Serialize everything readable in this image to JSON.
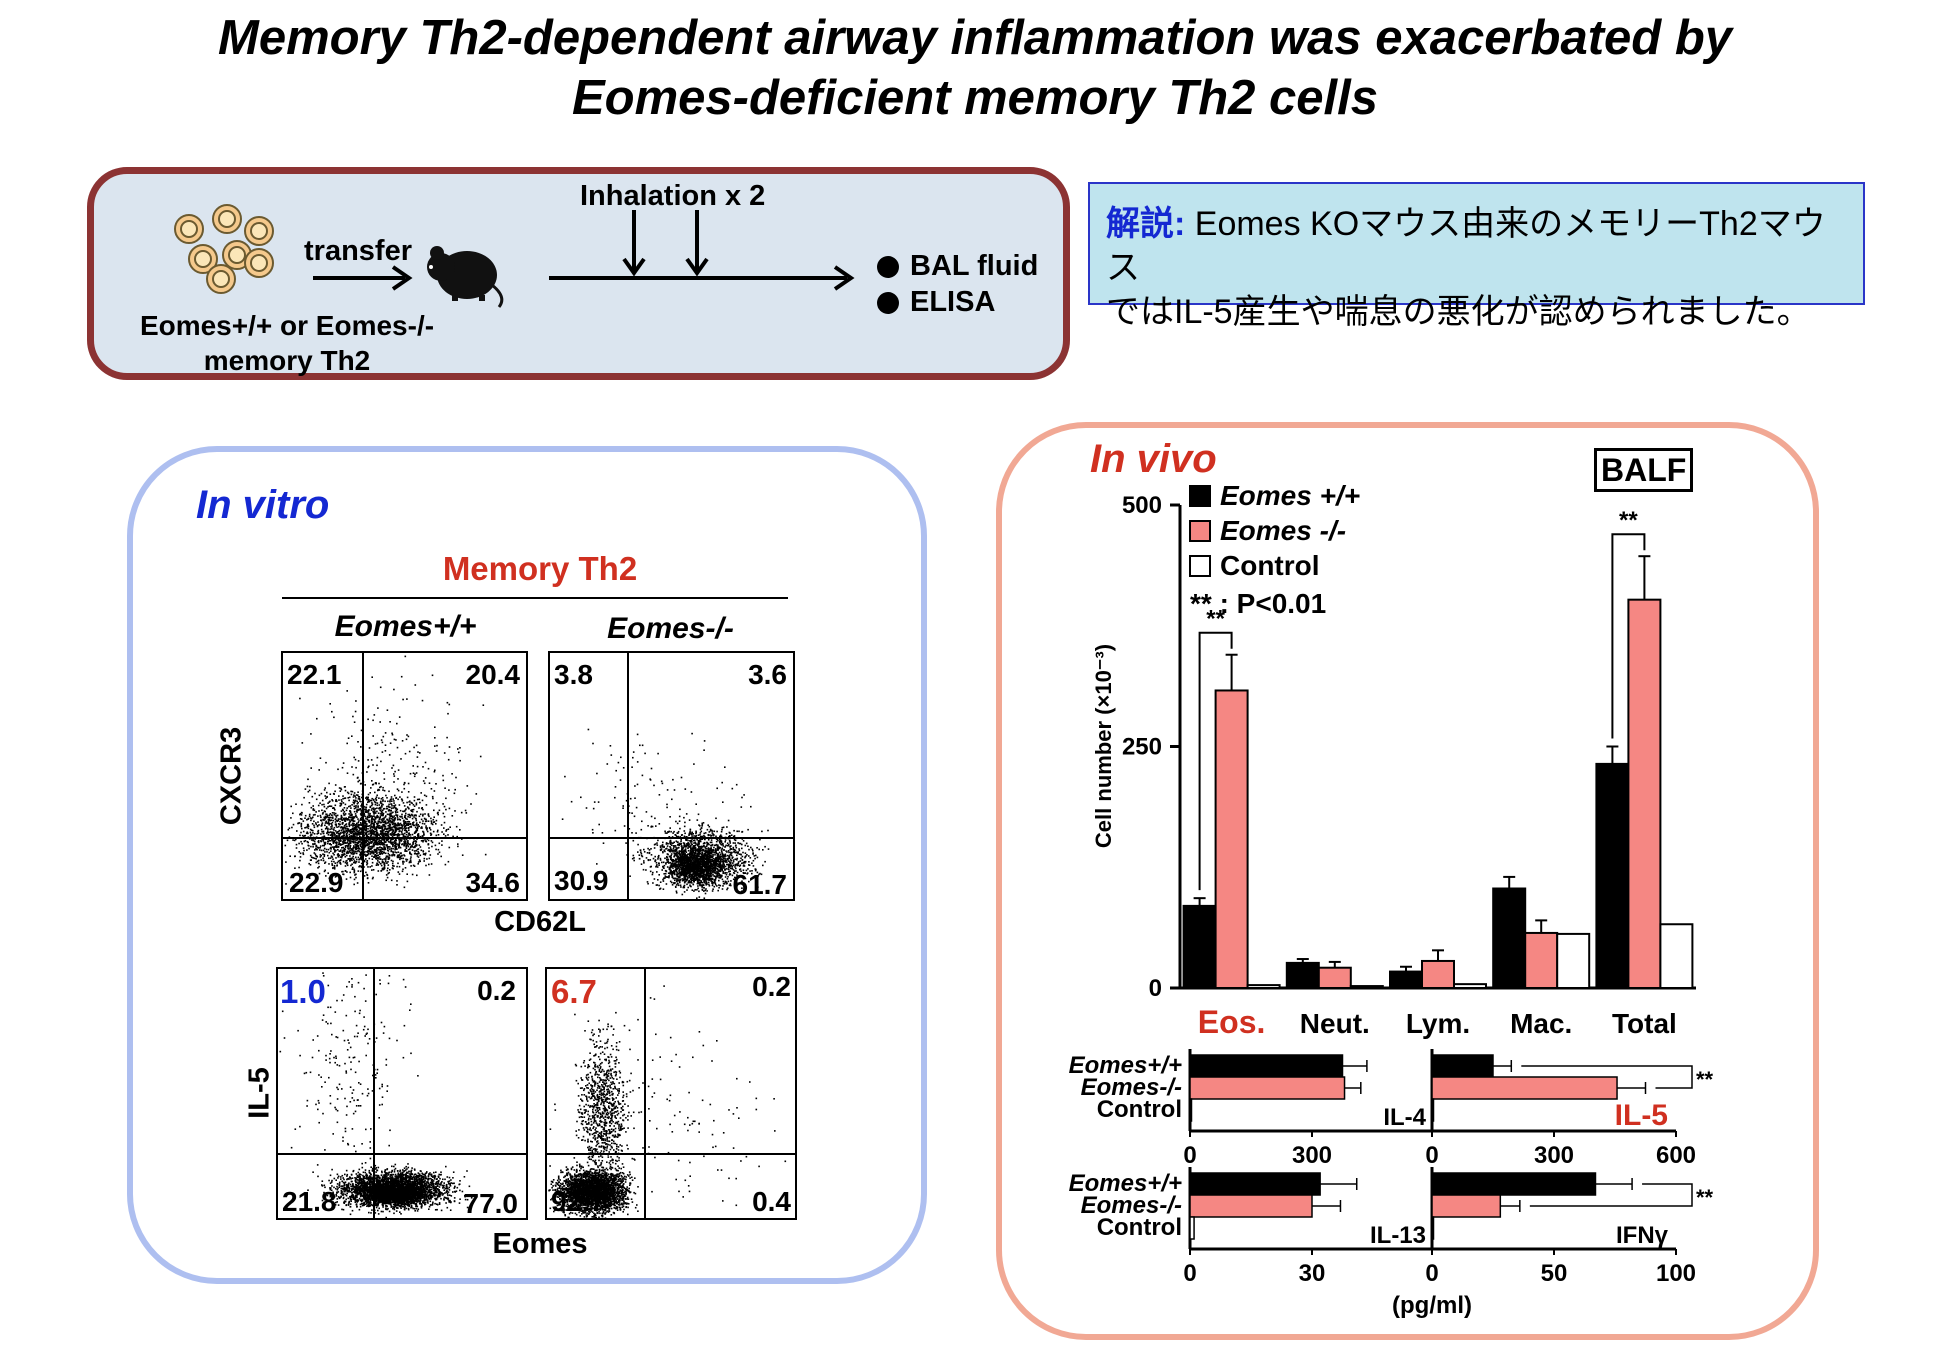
{
  "title": {
    "line1": "Memory Th2-dependent airway inflammation was exacerbated by",
    "line2": "Eomes-deficient memory Th2 cells"
  },
  "protocol": {
    "transfer": "transfer",
    "inhalation": "Inhalation x 2",
    "cells_line1": "Eomes+/+ or Eomes-/-",
    "cells_line2": "memory Th2",
    "readout1": "BAL fluid",
    "readout2": "ELISA"
  },
  "commentary": {
    "label": "解説:",
    "text1": " Eomes KOマウス由来のメモリーTh2マウス",
    "text2": "ではIL-5産生や喘息の悪化が認められました。"
  },
  "in_vitro": {
    "heading": "In vitro",
    "group": "Memory Th2",
    "col1": "Eomes+/+",
    "col2": "Eomes-/-",
    "plot1": {
      "ylabel": "CXCR3",
      "xlabel": "CD62L",
      "wt": {
        "ul": "22.1",
        "ur": "20.4",
        "ll": "22.9",
        "lr": "34.6"
      },
      "ko": {
        "ul": "3.8",
        "ur": "3.6",
        "ll": "30.9",
        "lr": "61.7"
      }
    },
    "plot2": {
      "ylabel": "IL-5",
      "xlabel": "Eomes",
      "wt": {
        "ul": "1.0",
        "ur": "0.2",
        "ll": "21.8",
        "lr": "77.0"
      },
      "ko": {
        "ul": "6.7",
        "ur": "0.2",
        "ll": "92.7",
        "lr": "0.4"
      }
    }
  },
  "in_vivo": {
    "heading": "In vivo",
    "balf": "BALF",
    "sig_note": "** : P<0.01",
    "axis_unit": "(pg/ml)"
  },
  "colors": {
    "wt": "#000000",
    "ko": "#f58783",
    "control": "#ffffff",
    "blue": "#1428d2",
    "red": "#d03020"
  },
  "chart_data": [
    {
      "type": "bar",
      "title": "BALF",
      "ylabel": "Cell number (×10⁻³)",
      "ylim": [
        0,
        500
      ],
      "yticks": [
        0,
        250,
        500
      ],
      "categories": [
        "Eos.",
        "Neut.",
        "Lym.",
        "Mac.",
        "Total"
      ],
      "series": [
        {
          "name": "Eomes +/+",
          "values": [
            85,
            26,
            17,
            103,
            232
          ],
          "errors": [
            8,
            4,
            5,
            12,
            18
          ]
        },
        {
          "name": "Eomes -/-",
          "values": [
            308,
            21,
            28,
            57,
            402
          ],
          "errors": [
            37,
            6,
            11,
            13,
            45
          ]
        },
        {
          "name": "Control",
          "values": [
            3,
            2,
            4,
            56,
            66
          ],
          "errors": [
            0,
            0,
            0,
            0,
            0
          ]
        }
      ],
      "significance": [
        "Eos.",
        "Total"
      ],
      "legend_position": "top-left"
    },
    {
      "type": "bar",
      "orientation": "horizontal",
      "title": "IL-4",
      "xlim": [
        0,
        600
      ],
      "xticks": [
        "0",
        "300"
      ],
      "categories": [
        "Eomes+/+",
        "Eomes-/-",
        "Control"
      ],
      "values": [
        375,
        380,
        0
      ],
      "errors": [
        60,
        40,
        0
      ]
    },
    {
      "type": "bar",
      "orientation": "horizontal",
      "title": "IL-5",
      "xlim": [
        0,
        600
      ],
      "xticks": [
        "0",
        "300",
        "600"
      ],
      "categories": [
        "Eomes+/+",
        "Eomes-/-",
        "Control"
      ],
      "values": [
        150,
        455,
        0
      ],
      "errors": [
        45,
        70,
        0
      ],
      "significance": true
    },
    {
      "type": "bar",
      "orientation": "horizontal",
      "title": "IL-13",
      "xlim": [
        0,
        60
      ],
      "xticks": [
        "0",
        "30"
      ],
      "categories": [
        "Eomes+/+",
        "Eomes-/-",
        "Control"
      ],
      "values": [
        32,
        30,
        1
      ],
      "errors": [
        9,
        7,
        0
      ]
    },
    {
      "type": "bar",
      "orientation": "horizontal",
      "title": "IFNγ",
      "xlim": [
        0,
        100
      ],
      "xticks": [
        "0",
        "50",
        "100"
      ],
      "categories": [
        "Eomes+/+",
        "Eomes-/-",
        "Control"
      ],
      "values": [
        67,
        28,
        0
      ],
      "errors": [
        15,
        8,
        0
      ],
      "significance": true
    }
  ]
}
